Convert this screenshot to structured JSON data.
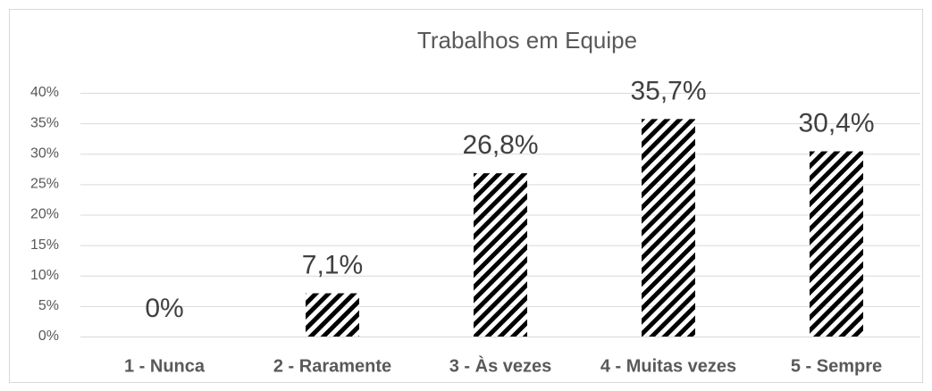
{
  "chart_data": {
    "type": "bar",
    "title": "Trabalhos em Equipe",
    "categories": [
      "1 - Nunca",
      "2 - Raramente",
      "3 - Às vezes",
      "4 - Muitas vezes",
      "5 - Sempre"
    ],
    "values": [
      0,
      7.1,
      26.8,
      35.7,
      30.4
    ],
    "value_labels": [
      "0%",
      "7,1%",
      "26,8%",
      "35,7%",
      "30,4%"
    ],
    "color": "#000000",
    "ylim": [
      0,
      40
    ],
    "yticks": [
      {
        "value": 0,
        "label": "0%"
      },
      {
        "value": 5,
        "label": "5%"
      },
      {
        "value": 10,
        "label": "10%"
      },
      {
        "value": 15,
        "label": "15%"
      },
      {
        "value": 20,
        "label": "20%"
      },
      {
        "value": 25,
        "label": "25%"
      },
      {
        "value": 30,
        "label": "30%"
      },
      {
        "value": 35,
        "label": "35%"
      },
      {
        "value": 40,
        "label": "40%"
      }
    ],
    "grid": true
  }
}
